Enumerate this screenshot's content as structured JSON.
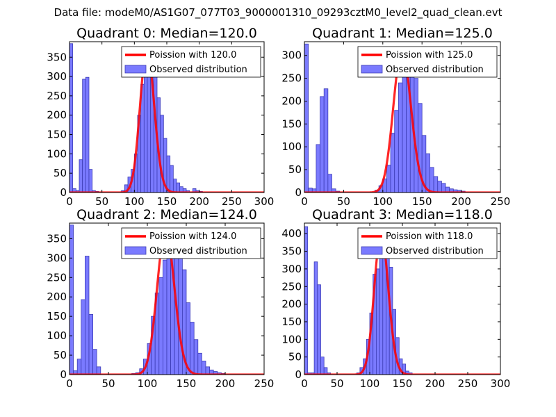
{
  "figure_title": "Data file: modeM0/AS1G07_077T03_9000001310_09293cztM0_level2_quad_clean.evt",
  "colors": {
    "hist_fill": "#7a7aff",
    "hist_edge": "#3c3cb4",
    "fit_line": "#ff0000",
    "background": "#ffffff"
  },
  "chart_data": [
    {
      "type": "bar",
      "title": "Quadrant 0: Median=120.0",
      "median": 120.0,
      "xlim": [
        0,
        300
      ],
      "ylim": [
        0,
        390
      ],
      "xticks": [
        0,
        50,
        100,
        150,
        200,
        250,
        300
      ],
      "yticks": [
        0,
        50,
        100,
        150,
        200,
        250,
        300,
        350
      ],
      "legend": [
        "Poission with 120.0",
        "Observed distribution"
      ],
      "legend_position": "top-right",
      "bin_width": 5,
      "bins": [
        [
          0,
          385
        ],
        [
          5,
          10
        ],
        [
          10,
          5
        ],
        [
          15,
          85
        ],
        [
          20,
          293
        ],
        [
          25,
          298
        ],
        [
          30,
          60
        ],
        [
          35,
          5
        ],
        [
          40,
          3
        ],
        [
          80,
          5
        ],
        [
          85,
          20
        ],
        [
          90,
          40
        ],
        [
          95,
          60
        ],
        [
          100,
          100
        ],
        [
          105,
          200
        ],
        [
          110,
          280
        ],
        [
          115,
          335
        ],
        [
          120,
          350
        ],
        [
          125,
          325
        ],
        [
          130,
          310
        ],
        [
          135,
          245
        ],
        [
          140,
          200
        ],
        [
          145,
          140
        ],
        [
          150,
          95
        ],
        [
          155,
          70
        ],
        [
          160,
          35
        ],
        [
          165,
          25
        ],
        [
          170,
          15
        ],
        [
          175,
          10
        ],
        [
          180,
          5
        ],
        [
          190,
          10
        ],
        [
          195,
          5
        ],
        [
          200,
          3
        ]
      ],
      "poisson": {
        "mean": 120.0,
        "peak": 370
      }
    },
    {
      "type": "bar",
      "title": "Quadrant 1: Median=125.0",
      "median": 125.0,
      "xlim": [
        0,
        250
      ],
      "ylim": [
        0,
        330
      ],
      "xticks": [
        0,
        50,
        100,
        150,
        200,
        250
      ],
      "yticks": [
        0,
        50,
        100,
        150,
        200,
        250,
        300
      ],
      "legend": [
        "Poission with 125.0",
        "Observed distribution"
      ],
      "legend_position": "top-right",
      "bin_width": 5,
      "bins": [
        [
          0,
          325
        ],
        [
          5,
          10
        ],
        [
          10,
          8
        ],
        [
          15,
          105
        ],
        [
          20,
          210
        ],
        [
          25,
          227
        ],
        [
          30,
          40
        ],
        [
          35,
          8
        ],
        [
          40,
          3
        ],
        [
          90,
          5
        ],
        [
          95,
          15
        ],
        [
          100,
          30
        ],
        [
          105,
          60
        ],
        [
          110,
          130
        ],
        [
          115,
          180
        ],
        [
          120,
          240
        ],
        [
          125,
          290
        ],
        [
          130,
          305
        ],
        [
          135,
          285
        ],
        [
          140,
          250
        ],
        [
          145,
          195
        ],
        [
          150,
          125
        ],
        [
          155,
          85
        ],
        [
          160,
          55
        ],
        [
          165,
          35
        ],
        [
          170,
          25
        ],
        [
          175,
          20
        ],
        [
          180,
          12
        ],
        [
          185,
          8
        ],
        [
          190,
          6
        ],
        [
          195,
          5
        ],
        [
          200,
          3
        ]
      ],
      "poisson": {
        "mean": 125.0,
        "peak": 312
      }
    },
    {
      "type": "bar",
      "title": "Quadrant 2: Median=124.0",
      "median": 124.0,
      "xlim": [
        0,
        250
      ],
      "ylim": [
        0,
        390
      ],
      "xticks": [
        0,
        50,
        100,
        150,
        200,
        250
      ],
      "yticks": [
        0,
        50,
        100,
        150,
        200,
        250,
        300,
        350
      ],
      "legend": [
        "Poission with 124.0",
        "Observed distribution"
      ],
      "legend_position": "top-right",
      "bin_width": 5,
      "bins": [
        [
          0,
          385
        ],
        [
          5,
          10
        ],
        [
          10,
          40
        ],
        [
          15,
          193
        ],
        [
          20,
          305
        ],
        [
          25,
          155
        ],
        [
          30,
          65
        ],
        [
          35,
          20
        ],
        [
          80,
          3
        ],
        [
          85,
          5
        ],
        [
          90,
          15
        ],
        [
          95,
          40
        ],
        [
          100,
          80
        ],
        [
          105,
          150
        ],
        [
          110,
          210
        ],
        [
          115,
          250
        ],
        [
          120,
          295
        ],
        [
          125,
          330
        ],
        [
          130,
          350
        ],
        [
          135,
          365
        ],
        [
          140,
          310
        ],
        [
          145,
          270
        ],
        [
          150,
          185
        ],
        [
          155,
          135
        ],
        [
          160,
          90
        ],
        [
          165,
          55
        ],
        [
          170,
          35
        ],
        [
          175,
          20
        ],
        [
          180,
          12
        ],
        [
          185,
          8
        ],
        [
          190,
          5
        ],
        [
          195,
          3
        ]
      ],
      "poisson": {
        "mean": 124.0,
        "peak": 370
      }
    },
    {
      "type": "bar",
      "title": "Quadrant 3: Median=118.0",
      "median": 118.0,
      "xlim": [
        0,
        300
      ],
      "ylim": [
        0,
        430
      ],
      "xticks": [
        0,
        50,
        100,
        150,
        200,
        250,
        300
      ],
      "yticks": [
        0,
        50,
        100,
        150,
        200,
        250,
        300,
        350,
        400
      ],
      "legend": [
        "Poission with 118.0",
        "Observed distribution"
      ],
      "legend_position": "top-right",
      "bin_width": 5,
      "bins": [
        [
          0,
          420
        ],
        [
          5,
          5
        ],
        [
          10,
          5
        ],
        [
          15,
          320
        ],
        [
          20,
          255
        ],
        [
          25,
          50
        ],
        [
          30,
          20
        ],
        [
          35,
          5
        ],
        [
          80,
          5
        ],
        [
          85,
          20
        ],
        [
          90,
          45
        ],
        [
          95,
          100
        ],
        [
          100,
          175
        ],
        [
          105,
          285
        ],
        [
          110,
          300
        ],
        [
          115,
          370
        ],
        [
          120,
          415
        ],
        [
          125,
          405
        ],
        [
          130,
          305
        ],
        [
          135,
          185
        ],
        [
          140,
          105
        ],
        [
          145,
          45
        ],
        [
          150,
          30
        ],
        [
          155,
          10
        ],
        [
          160,
          5
        ]
      ],
      "poisson": {
        "mean": 118.0,
        "peak": 400
      }
    }
  ]
}
